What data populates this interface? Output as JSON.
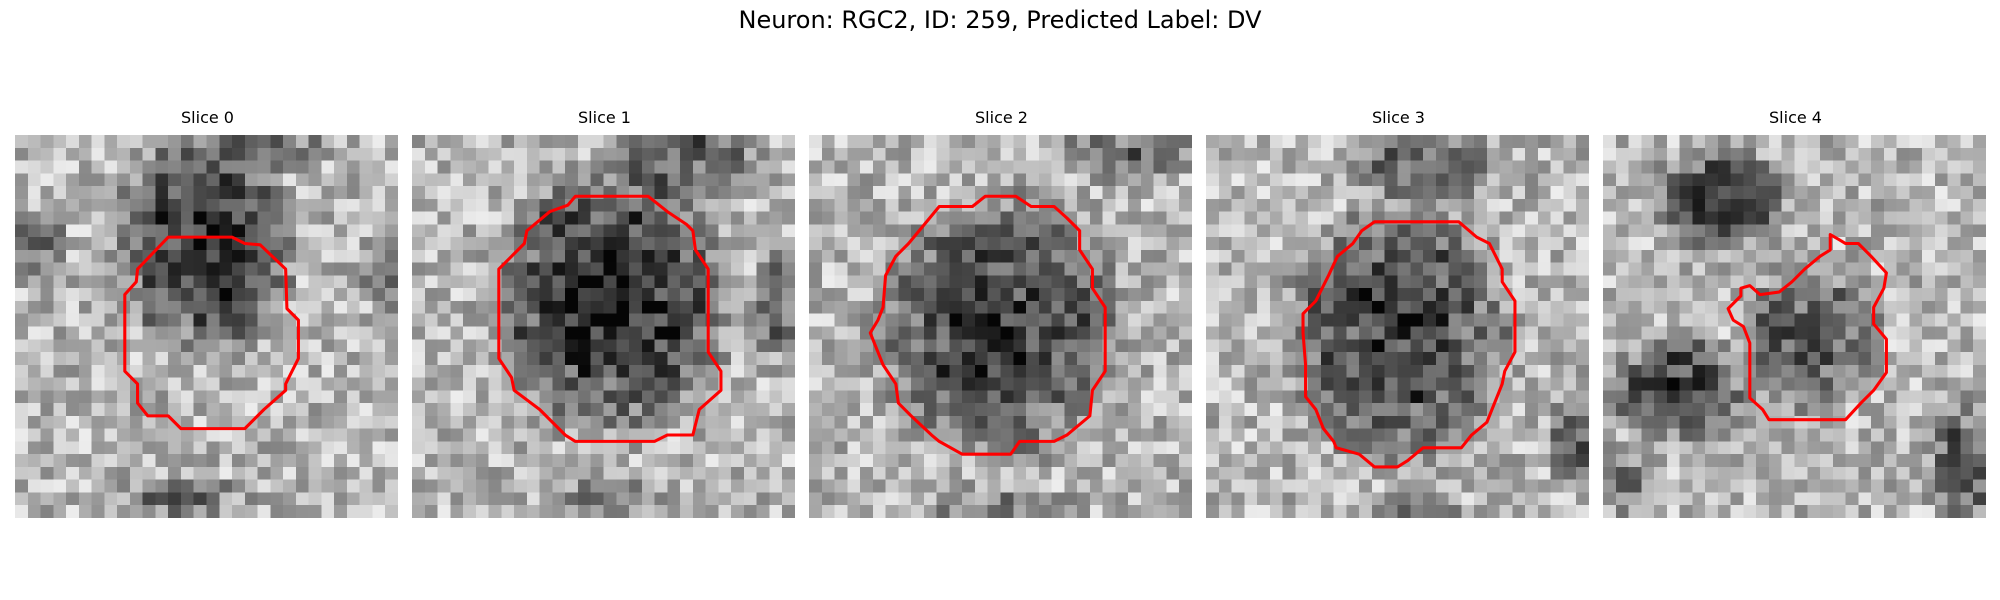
{
  "figure": {
    "title": "Neuron: RGC2, ID: 259, Predicted Label: DV",
    "contour_color": "#ff0000"
  },
  "panels": [
    {
      "title": "Slice 0"
    },
    {
      "title": "Slice 1"
    },
    {
      "title": "Slice 2"
    },
    {
      "title": "Slice 3"
    },
    {
      "title": "Slice 4"
    }
  ]
}
